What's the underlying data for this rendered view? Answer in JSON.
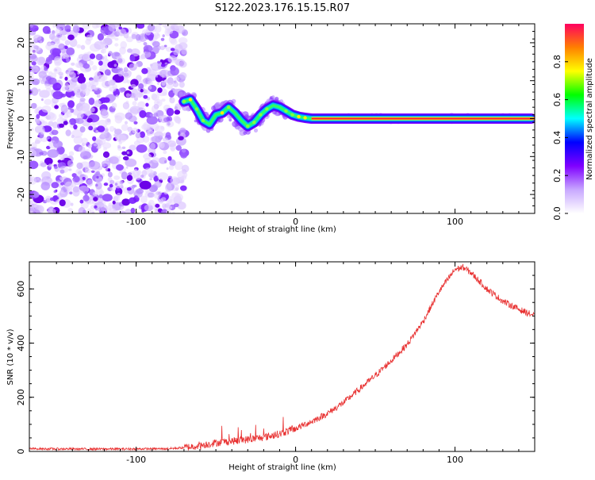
{
  "title": "S122.2023.176.15.15.R07",
  "chart_data": [
    {
      "type": "heatmap",
      "xlabel": "Height of straight line (km)",
      "ylabel": "Frequency (Hz)",
      "xlim": [
        -167,
        150
      ],
      "ylim": [
        -25,
        25
      ],
      "xticks": [
        -100,
        0,
        100
      ],
      "yticks": [
        -20,
        -10,
        0,
        10,
        20
      ],
      "grid": false,
      "colorbar": {
        "label": "Normalized spectral amplitude",
        "range": [
          0,
          1
        ],
        "ticks": [
          "0.0",
          "0.2",
          "0.4",
          "0.6",
          "0.8"
        ],
        "colors": [
          "#ffffff",
          "#c8a8ff",
          "#7f00ff",
          "#0000ff",
          "#00ffff",
          "#00ff00",
          "#ffff00",
          "#ff8000",
          "#ff0060"
        ]
      },
      "noise_region_x": [
        -167,
        -73
      ],
      "ridge": {
        "x": [
          -70,
          -66,
          -62,
          -58,
          -54,
          -50,
          -46,
          -42,
          -38,
          -34,
          -30,
          -26,
          -22,
          -18,
          -14,
          -10,
          -6,
          -2,
          2,
          6,
          10,
          30,
          60,
          90,
          120,
          148
        ],
        "freq": [
          4.5,
          5,
          2.5,
          -0.5,
          -1.5,
          1,
          1.5,
          3,
          1.5,
          -0.5,
          -2,
          -1,
          1,
          2.5,
          3.5,
          3,
          2,
          1,
          0.5,
          0.2,
          0,
          0,
          0,
          0,
          0,
          0
        ]
      }
    },
    {
      "type": "line",
      "xlabel": "Height of straight line (km)",
      "ylabel": "SNR (10 * v/v)",
      "xlim": [
        -167,
        150
      ],
      "ylim": [
        0,
        700
      ],
      "xticks": [
        -100,
        0,
        100
      ],
      "yticks": [
        0,
        200,
        400,
        600
      ],
      "grid": false,
      "series": [
        {
          "color": "#e83030",
          "x": [
            -167,
            -140,
            -110,
            -80,
            -70,
            -60,
            -50,
            -40,
            -30,
            -20,
            -10,
            0,
            10,
            20,
            30,
            40,
            50,
            60,
            70,
            80,
            90,
            100,
            105,
            110,
            120,
            130,
            140,
            150
          ],
          "y": [
            10,
            9,
            9,
            10,
            14,
            22,
            32,
            38,
            44,
            52,
            65,
            85,
            110,
            140,
            180,
            230,
            280,
            335,
            395,
            480,
            590,
            672,
            680,
            660,
            600,
            555,
            525,
            500
          ]
        }
      ]
    }
  ]
}
